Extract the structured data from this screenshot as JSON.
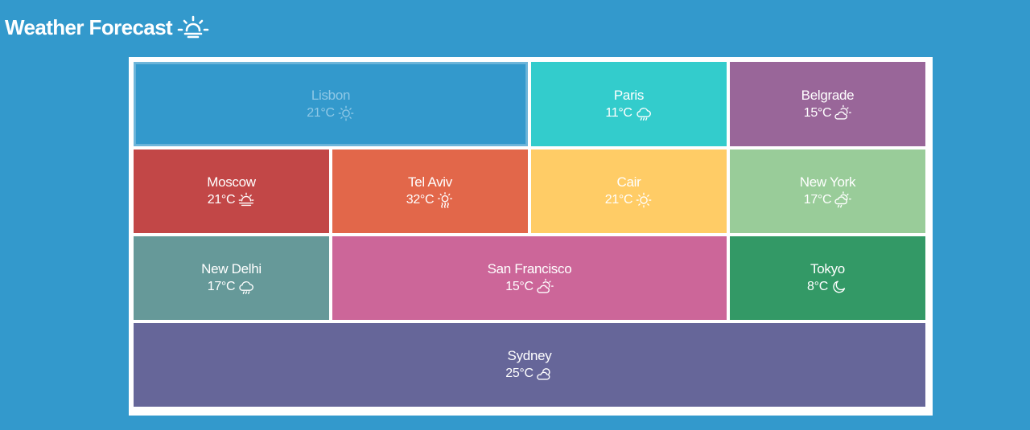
{
  "header": {
    "title": "Weather Forecast",
    "icon": "sun-horizon-icon"
  },
  "colors": {
    "background": "#3399cc",
    "board": "#ffffff"
  },
  "cities": [
    {
      "name": "Lisbon",
      "temp": "21°C",
      "condition": "sunny",
      "icon": "sun-icon",
      "color": "#3399cc",
      "selected": true
    },
    {
      "name": "Paris",
      "temp": "11°C",
      "condition": "rain",
      "icon": "cloud-rain-icon",
      "color": "#33cccc"
    },
    {
      "name": "Belgrade",
      "temp": "15°C",
      "condition": "partly-cloudy",
      "icon": "sun-cloud-icon",
      "color": "#996699"
    },
    {
      "name": "Moscow",
      "temp": "21°C",
      "condition": "hazy-sun",
      "icon": "sun-fog-icon",
      "color": "#c24747"
    },
    {
      "name": "Tel Aviv",
      "temp": "32°C",
      "condition": "hot",
      "icon": "sun-heat-icon",
      "color": "#e2674a"
    },
    {
      "name": "Cair",
      "temp": "21°C",
      "condition": "sunny",
      "icon": "sun-icon",
      "color": "#ffcc66"
    },
    {
      "name": "New York",
      "temp": "17°C",
      "condition": "sun-showers",
      "icon": "sun-cloud-rain-icon",
      "color": "#99cc99"
    },
    {
      "name": "New Delhi",
      "temp": "17°C",
      "condition": "rain",
      "icon": "cloud-rain-icon",
      "color": "#669999"
    },
    {
      "name": "San Francisco",
      "temp": "15°C",
      "condition": "partly-cloudy",
      "icon": "sun-cloud-icon",
      "color": "#cc6699"
    },
    {
      "name": "Tokyo",
      "temp": "8°C",
      "condition": "clear-night",
      "icon": "moon-icon",
      "color": "#339966"
    },
    {
      "name": "Sydney",
      "temp": "25°C",
      "condition": "cloudy",
      "icon": "cloud-sun-icon",
      "color": "#666699"
    }
  ]
}
